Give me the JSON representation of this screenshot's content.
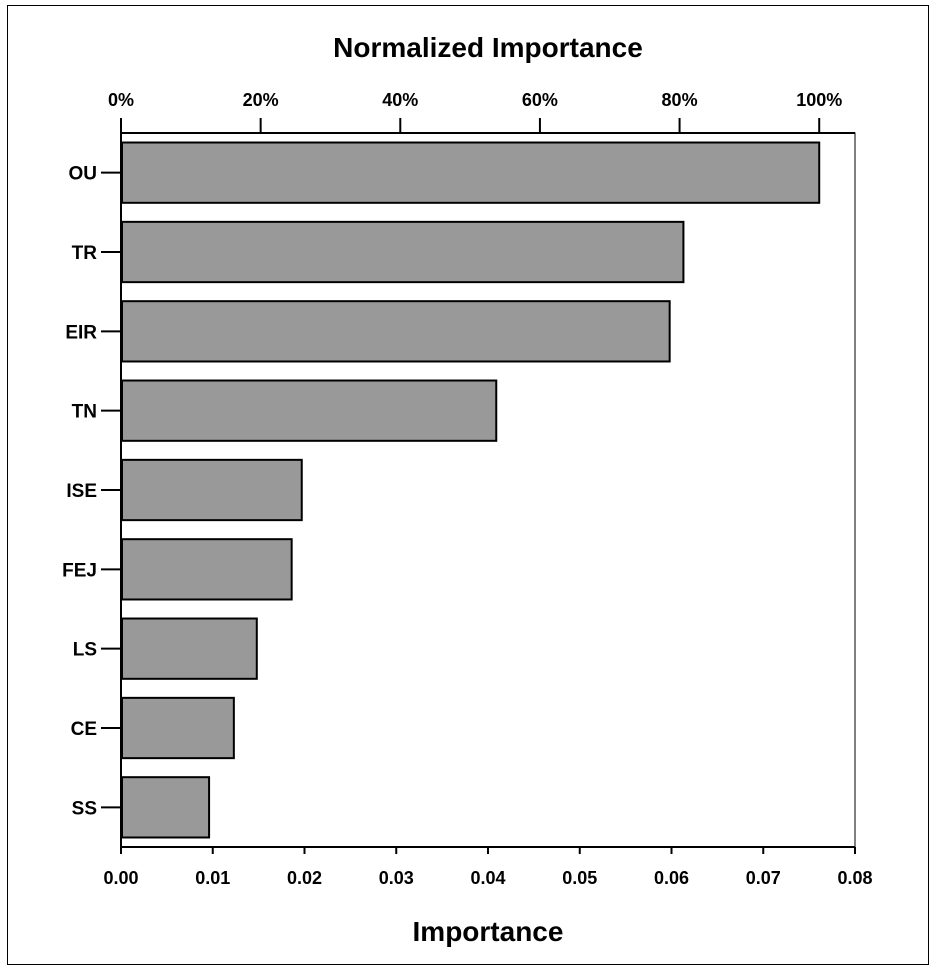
{
  "chart_data": {
    "type": "bar",
    "orientation": "horizontal",
    "top_axis_title": "Normalized Importance",
    "xlabel": "Importance",
    "ylabel": "",
    "xlim": [
      0,
      0.08
    ],
    "x_ticks": [
      "0.00",
      "0.01",
      "0.02",
      "0.03",
      "0.04",
      "0.05",
      "0.06",
      "0.07",
      "0.08"
    ],
    "normalized_ticks": [
      "0%",
      "20%",
      "40%",
      "60%",
      "80%",
      "100%"
    ],
    "categories": [
      "OU",
      "TR",
      "EIR",
      "TN",
      "ISE",
      "FEJ",
      "LS",
      "CE",
      "SS"
    ],
    "values": [
      0.0761,
      0.0613,
      0.0598,
      0.0409,
      0.0197,
      0.0186,
      0.0148,
      0.0123,
      0.0096
    ],
    "bar_color": "#999999",
    "grid": false,
    "legend": "none"
  }
}
